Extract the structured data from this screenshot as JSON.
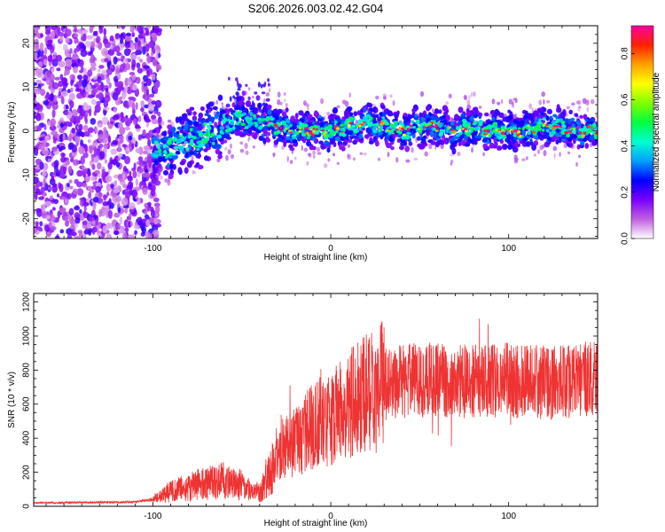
{
  "page_title": "S206.2026.003.02.42.G04",
  "chart_data": [
    {
      "type": "heatmap",
      "name": "spectrogram",
      "title": "S206.2026.003.02.42.G04",
      "xlabel": "Height of straight line (km)",
      "ylabel": "Frequency (Hz)",
      "xlim": [
        -167,
        150
      ],
      "ylim": [
        -24.5,
        24
      ],
      "x_ticks": [
        -100,
        0,
        100
      ],
      "y_ticks": [
        -20,
        -10,
        0,
        10,
        20
      ],
      "signal_track": {
        "x": [
          -100,
          -90,
          -80,
          -70,
          -60,
          -50,
          -40,
          -30,
          -20,
          -10,
          0,
          10,
          20,
          30,
          40,
          50,
          60,
          70,
          80,
          90,
          100,
          110,
          120,
          130,
          140,
          150
        ],
        "y": [
          -5,
          -4,
          -2,
          -1,
          1,
          3,
          2,
          1,
          0,
          0,
          0,
          1,
          2,
          1,
          0,
          1,
          1,
          0,
          1,
          0,
          0,
          0,
          1,
          1,
          0,
          0
        ]
      },
      "colorbar": {
        "label": "Normalized spectral amplitude",
        "ticks": [
          0.0,
          0.2,
          0.4,
          0.6,
          0.8
        ],
        "range": [
          0,
          0.92
        ],
        "colors": [
          "#ffffff",
          "#c060e0",
          "#7a00ff",
          "#0000ff",
          "#00a0ff",
          "#00ffd0",
          "#00ff40",
          "#80ff00",
          "#ffff00",
          "#ffa000",
          "#ff2000",
          "#ff00a0"
        ]
      }
    },
    {
      "type": "line",
      "name": "snr",
      "xlabel": "Height of straight line (km)",
      "ylabel": "SNR (10 * v/v)",
      "xlim": [
        -167,
        150
      ],
      "ylim": [
        0,
        1250
      ],
      "x_ticks": [
        -100,
        0,
        100
      ],
      "y_ticks": [
        0,
        200,
        400,
        600,
        800,
        1000,
        1200
      ],
      "color": "#ee3333",
      "trend": {
        "x": [
          -167,
          -110,
          -100,
          -95,
          -90,
          -80,
          -70,
          -60,
          -50,
          -45,
          -40,
          -30,
          -20,
          -10,
          0,
          10,
          20,
          30,
          40,
          60,
          80,
          100,
          120,
          150
        ],
        "y": [
          20,
          25,
          40,
          60,
          90,
          110,
          140,
          150,
          120,
          90,
          80,
          320,
          380,
          470,
          520,
          600,
          660,
          720,
          740,
          740,
          730,
          740,
          720,
          760
        ]
      }
    }
  ]
}
